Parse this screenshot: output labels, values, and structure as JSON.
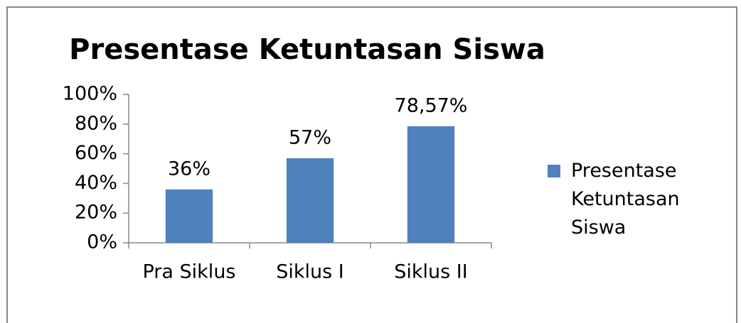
{
  "chart_data": {
    "type": "bar",
    "title": "Presentase Ketuntasan Siswa",
    "categories": [
      "Pra Siklus",
      "Siklus I",
      "Siklus II"
    ],
    "series": [
      {
        "name": "Presentase Ketuntasan Siswa",
        "color": "#4f81bd",
        "values": [
          36,
          57,
          78.57
        ],
        "value_labels": [
          "36%",
          "57%",
          "78,57%"
        ]
      }
    ],
    "ylim": [
      0,
      100
    ],
    "yticks": [
      {
        "value": 0,
        "label": "0%"
      },
      {
        "value": 20,
        "label": "20%"
      },
      {
        "value": 40,
        "label": "40%"
      },
      {
        "value": 60,
        "label": "60%"
      },
      {
        "value": 80,
        "label": "80%"
      },
      {
        "value": 100,
        "label": "100%"
      }
    ],
    "grid": false,
    "legend": "right"
  }
}
